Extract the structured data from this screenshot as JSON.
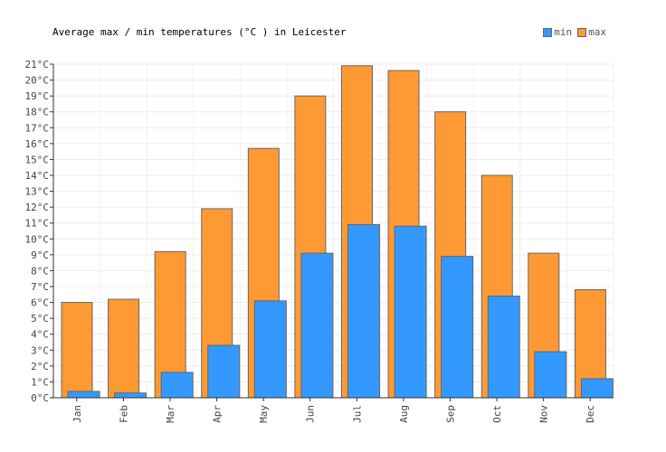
{
  "chart_data": {
    "type": "bar",
    "title": "Average max / min temperatures (°C ) in Leicester",
    "categories": [
      "Jan",
      "Feb",
      "Mar",
      "Apr",
      "May",
      "Jun",
      "Jul",
      "Aug",
      "Sep",
      "Oct",
      "Nov",
      "Dec"
    ],
    "series": [
      {
        "name": "min",
        "color": "#3399ff",
        "values": [
          0.4,
          0.3,
          1.6,
          3.3,
          6.1,
          9.1,
          10.9,
          10.8,
          8.9,
          6.4,
          2.9,
          1.2
        ]
      },
      {
        "name": "max",
        "color": "#ff9933",
        "values": [
          6.0,
          6.2,
          9.2,
          11.9,
          15.7,
          19.0,
          20.9,
          20.6,
          18.0,
          14.0,
          9.1,
          6.8
        ]
      }
    ],
    "ylim": [
      0,
      21
    ],
    "ytick_step": 1,
    "ytick_suffix": "°C",
    "grid": true,
    "legend_position": "top-right"
  }
}
